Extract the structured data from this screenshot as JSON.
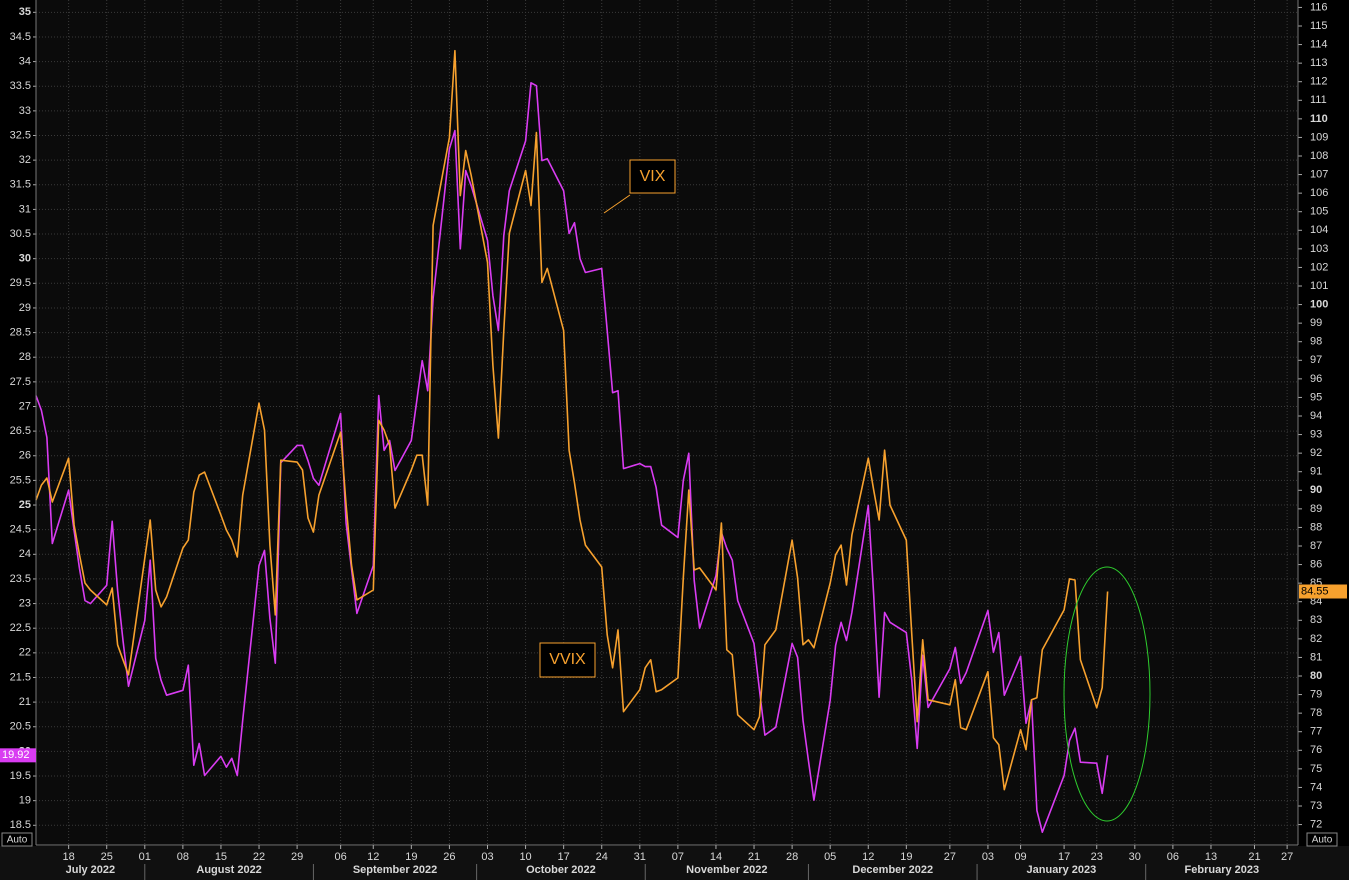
{
  "chart_data": {
    "type": "line",
    "x": [
      "2022-07-12",
      "2022-07-13",
      "2022-07-14",
      "2022-07-15",
      "2022-07-18",
      "2022-07-19",
      "2022-07-20",
      "2022-07-21",
      "2022-07-22",
      "2022-07-25",
      "2022-07-26",
      "2022-07-27",
      "2022-07-28",
      "2022-07-29",
      "2022-08-01",
      "2022-08-02",
      "2022-08-03",
      "2022-08-04",
      "2022-08-05",
      "2022-08-08",
      "2022-08-09",
      "2022-08-10",
      "2022-08-11",
      "2022-08-12",
      "2022-08-15",
      "2022-08-16",
      "2022-08-17",
      "2022-08-18",
      "2022-08-19",
      "2022-08-22",
      "2022-08-23",
      "2022-08-24",
      "2022-08-25",
      "2022-08-26",
      "2022-08-29",
      "2022-08-30",
      "2022-08-31",
      "2022-09-01",
      "2022-09-02",
      "2022-09-06",
      "2022-09-07",
      "2022-09-08",
      "2022-09-09",
      "2022-09-12",
      "2022-09-13",
      "2022-09-14",
      "2022-09-15",
      "2022-09-16",
      "2022-09-19",
      "2022-09-20",
      "2022-09-21",
      "2022-09-22",
      "2022-09-23",
      "2022-09-26",
      "2022-09-27",
      "2022-09-28",
      "2022-09-29",
      "2022-09-30",
      "2022-10-03",
      "2022-10-04",
      "2022-10-05",
      "2022-10-06",
      "2022-10-07",
      "2022-10-10",
      "2022-10-11",
      "2022-10-12",
      "2022-10-13",
      "2022-10-14",
      "2022-10-17",
      "2022-10-18",
      "2022-10-19",
      "2022-10-20",
      "2022-10-21",
      "2022-10-24",
      "2022-10-25",
      "2022-10-26",
      "2022-10-27",
      "2022-10-28",
      "2022-10-31",
      "2022-11-01",
      "2022-11-02",
      "2022-11-03",
      "2022-11-04",
      "2022-11-07",
      "2022-11-08",
      "2022-11-09",
      "2022-11-10",
      "2022-11-11",
      "2022-11-14",
      "2022-11-15",
      "2022-11-16",
      "2022-11-17",
      "2022-11-18",
      "2022-11-21",
      "2022-11-22",
      "2022-11-23",
      "2022-11-25",
      "2022-11-28",
      "2022-11-29",
      "2022-11-30",
      "2022-12-01",
      "2022-12-02",
      "2022-12-05",
      "2022-12-06",
      "2022-12-07",
      "2022-12-08",
      "2022-12-09",
      "2022-12-12",
      "2022-12-13",
      "2022-12-14",
      "2022-12-15",
      "2022-12-16",
      "2022-12-19",
      "2022-12-20",
      "2022-12-21",
      "2022-12-22",
      "2022-12-23",
      "2022-12-27",
      "2022-12-28",
      "2022-12-29",
      "2022-12-30",
      "2023-01-03",
      "2023-01-04",
      "2023-01-05",
      "2023-01-06",
      "2023-01-09",
      "2023-01-10",
      "2023-01-11",
      "2023-01-12",
      "2023-01-13",
      "2023-01-17",
      "2023-01-18",
      "2023-01-19",
      "2023-01-20",
      "2023-01-23",
      "2023-01-24",
      "2023-01-25"
    ],
    "series": [
      {
        "name": "VIX",
        "color": "#d93cf2",
        "axis": "y",
        "values": [
          27.22,
          26.92,
          26.37,
          24.22,
          25.3,
          24.48,
          23.71,
          23.06,
          23.0,
          23.37,
          24.67,
          23.27,
          22.25,
          21.32,
          22.66,
          23.88,
          21.89,
          21.44,
          21.14,
          21.24,
          21.75,
          19.72,
          20.16,
          19.51,
          19.9,
          19.68,
          19.86,
          19.51,
          20.63,
          23.77,
          24.08,
          22.7,
          21.79,
          25.86,
          26.21,
          26.21,
          25.9,
          25.54,
          25.4,
          26.86,
          24.63,
          23.71,
          22.8,
          23.77,
          27.22,
          26.11,
          26.31,
          25.7,
          26.31,
          27.12,
          27.93,
          27.32,
          29.19,
          32.23,
          32.6,
          30.2,
          31.79,
          31.48,
          30.37,
          29.25,
          28.54,
          30.47,
          31.38,
          32.39,
          33.57,
          33.51,
          31.99,
          32.03,
          31.38,
          30.51,
          30.73,
          30.0,
          29.72,
          29.8,
          28.54,
          27.28,
          27.32,
          25.74,
          25.84,
          25.78,
          25.78,
          25.36,
          24.59,
          24.34,
          25.5,
          26.05,
          23.47,
          22.5,
          23.57,
          24.44,
          24.12,
          23.88,
          23.06,
          22.19,
          21.24,
          20.33,
          20.49,
          22.19,
          21.91,
          20.63,
          19.82,
          19.01,
          21.04,
          22.15,
          22.62,
          22.25,
          22.82,
          24.99,
          23.17,
          21.1,
          22.82,
          22.62,
          22.41,
          21.44,
          20.06,
          21.95,
          20.89,
          21.68,
          22.11,
          21.38,
          21.6,
          22.86,
          22.01,
          22.41,
          21.14,
          21.93,
          20.57,
          21.04,
          18.8,
          18.36,
          19.51,
          20.22,
          20.47,
          19.78,
          19.76,
          19.15,
          19.92
        ]
      },
      {
        "name": "VVIX",
        "color": "#f7a12e",
        "axis": "y2",
        "values": [
          89.47,
          90.28,
          90.66,
          89.37,
          91.73,
          88.13,
          86.52,
          85.01,
          84.63,
          83.83,
          84.74,
          81.68,
          80.87,
          80.06,
          86.35,
          88.4,
          84.63,
          83.72,
          84.26,
          86.89,
          87.32,
          89.9,
          90.82,
          90.98,
          88.67,
          87.86,
          87.32,
          86.41,
          89.74,
          94.69,
          93.24,
          87.05,
          83.29,
          91.62,
          91.52,
          91.09,
          88.51,
          87.75,
          89.74,
          93.13,
          89.2,
          85.98,
          84.1,
          84.63,
          93.77,
          93.24,
          92.43,
          89.04,
          91.09,
          91.89,
          91.89,
          89.2,
          104.26,
          108.99,
          113.67,
          105.87,
          108.29,
          106.95,
          102.27,
          96.73,
          92.81,
          98.61,
          103.83,
          107.22,
          105.33,
          109.26,
          101.19,
          101.95,
          98.61,
          92.16,
          90.39,
          88.4,
          87.05,
          85.87,
          82.22,
          80.44,
          82.48,
          78.08,
          79.26,
          80.44,
          80.87,
          79.15,
          79.26,
          79.9,
          85.28,
          90.01,
          85.71,
          85.82,
          84.63,
          88.24,
          81.41,
          81.14,
          77.91,
          77.11,
          77.81,
          81.68,
          82.48,
          87.32,
          85.28,
          81.68,
          81.95,
          81.52,
          85.01,
          86.52,
          87.05,
          84.9,
          87.59,
          91.73,
          90.01,
          88.4,
          92.16,
          89.2,
          87.32,
          82.22,
          77.54,
          81.95,
          78.72,
          78.45,
          79.8,
          77.22,
          77.11,
          80.23,
          76.68,
          76.3,
          73.88,
          77.11,
          76.03,
          78.72,
          78.83,
          81.41,
          83.56,
          85.23,
          85.17,
          80.87,
          78.29,
          79.37,
          84.55
        ]
      }
    ],
    "xlim": [
      "2022-07-12",
      "2023-03-01"
    ],
    "xticks": [
      {
        "value": "2022-07-18",
        "label": "18"
      },
      {
        "value": "2022-07-25",
        "label": "25"
      },
      {
        "value": "2022-08-01",
        "label": "01"
      },
      {
        "value": "2022-08-08",
        "label": "08"
      },
      {
        "value": "2022-08-15",
        "label": "15"
      },
      {
        "value": "2022-08-22",
        "label": "22"
      },
      {
        "value": "2022-08-29",
        "label": "29"
      },
      {
        "value": "2022-09-06",
        "label": "06"
      },
      {
        "value": "2022-09-12",
        "label": "12"
      },
      {
        "value": "2022-09-19",
        "label": "19"
      },
      {
        "value": "2022-09-26",
        "label": "26"
      },
      {
        "value": "2022-10-03",
        "label": "03"
      },
      {
        "value": "2022-10-10",
        "label": "10"
      },
      {
        "value": "2022-10-17",
        "label": "17"
      },
      {
        "value": "2022-10-24",
        "label": "24"
      },
      {
        "value": "2022-10-31",
        "label": "31"
      },
      {
        "value": "2022-11-07",
        "label": "07"
      },
      {
        "value": "2022-11-14",
        "label": "14"
      },
      {
        "value": "2022-11-21",
        "label": "21"
      },
      {
        "value": "2022-11-28",
        "label": "28"
      },
      {
        "value": "2022-12-05",
        "label": "05"
      },
      {
        "value": "2022-12-12",
        "label": "12"
      },
      {
        "value": "2022-12-19",
        "label": "19"
      },
      {
        "value": "2022-12-27",
        "label": "27"
      },
      {
        "value": "2023-01-03",
        "label": "03"
      },
      {
        "value": "2023-01-09",
        "label": "09"
      },
      {
        "value": "2023-01-17",
        "label": "17"
      },
      {
        "value": "2023-01-23",
        "label": "23"
      },
      {
        "value": "2023-01-30",
        "label": "30"
      },
      {
        "value": "2023-02-06",
        "label": "06"
      },
      {
        "value": "2023-02-13",
        "label": "13"
      },
      {
        "value": "2023-02-21",
        "label": "21"
      },
      {
        "value": "2023-02-27",
        "label": "27"
      }
    ],
    "x_groups": [
      {
        "value": "2022-07",
        "label": "July 2022"
      },
      {
        "value": "2022-08",
        "label": "August 2022"
      },
      {
        "value": "2022-09",
        "label": "September 2022"
      },
      {
        "value": "2022-10",
        "label": "October 2022"
      },
      {
        "value": "2022-11",
        "label": "November 2022"
      },
      {
        "value": "2022-12",
        "label": "December 2022"
      },
      {
        "value": "2023-01",
        "label": "January 2023"
      },
      {
        "value": "2023-02",
        "label": "February 2023"
      }
    ],
    "ylim": [
      18.1,
      35.25
    ],
    "yticks": [
      18.5,
      19,
      19.5,
      20,
      20.5,
      21,
      21.5,
      22,
      22.5,
      23,
      23.5,
      24,
      24.5,
      25,
      25.5,
      26,
      26.5,
      27,
      27.5,
      28,
      28.5,
      29,
      29.5,
      30,
      30.5,
      31,
      31.5,
      32,
      32.5,
      33,
      33.5,
      34,
      34.5,
      35
    ],
    "y2lim": [
      70.9,
      116.4
    ],
    "y2ticks": [
      72,
      73,
      74,
      75,
      76,
      77,
      78,
      79,
      80,
      81,
      82,
      83,
      84,
      85,
      86,
      87,
      88,
      89,
      90,
      91,
      92,
      93,
      94,
      95,
      96,
      97,
      98,
      99,
      100,
      101,
      102,
      103,
      104,
      105,
      106,
      107,
      108,
      109,
      110,
      111,
      112,
      113,
      114,
      115,
      116
    ],
    "grid": true,
    "scale_labels": [
      "Auto",
      "Auto"
    ]
  }
}
